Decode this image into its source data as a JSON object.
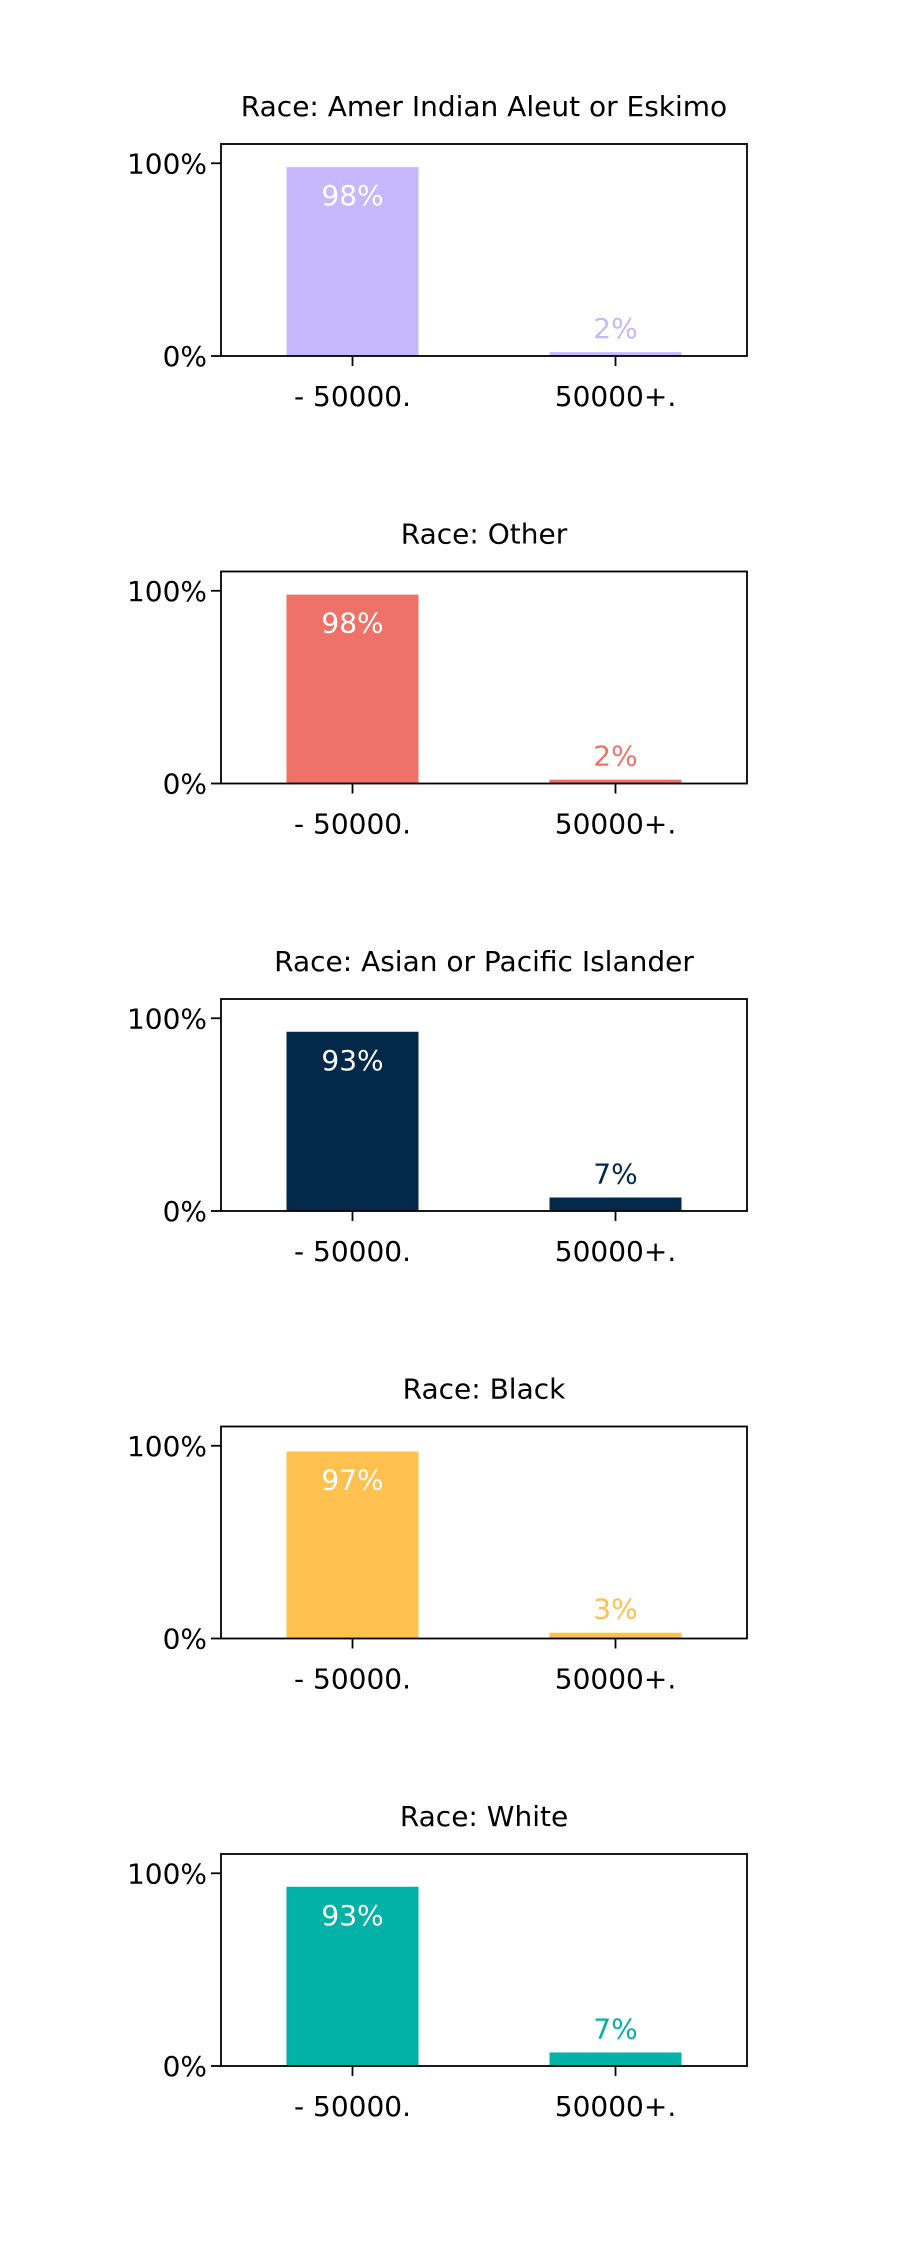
{
  "chart_data": [
    {
      "type": "bar",
      "title": "Race: Amer Indian Aleut or Eskimo",
      "categories": [
        "- 50000.",
        "50000+."
      ],
      "values": [
        98,
        2
      ],
      "value_labels": [
        "98%",
        "2%"
      ],
      "color": "#c5b8fd",
      "ylim": [
        0,
        110
      ],
      "yticks": [
        {
          "value": 0,
          "label": "0%"
        },
        {
          "value": 100,
          "label": "100%"
        }
      ]
    },
    {
      "type": "bar",
      "title": "Race: Other",
      "categories": [
        "- 50000.",
        "50000+."
      ],
      "values": [
        98,
        2
      ],
      "value_labels": [
        "98%",
        "2%"
      ],
      "color": "#ef7269",
      "ylim": [
        0,
        110
      ],
      "yticks": [
        {
          "value": 0,
          "label": "0%"
        },
        {
          "value": 100,
          "label": "100%"
        }
      ]
    },
    {
      "type": "bar",
      "title": "Race: Asian or Pacific Islander",
      "categories": [
        "- 50000.",
        "50000+."
      ],
      "values": [
        93,
        7
      ],
      "value_labels": [
        "93%",
        "7%"
      ],
      "color": "#03294a",
      "ylim": [
        0,
        110
      ],
      "yticks": [
        {
          "value": 0,
          "label": "0%"
        },
        {
          "value": 100,
          "label": "100%"
        }
      ]
    },
    {
      "type": "bar",
      "title": "Race: Black",
      "categories": [
        "- 50000.",
        "50000+."
      ],
      "values": [
        97,
        3
      ],
      "value_labels": [
        "97%",
        "3%"
      ],
      "color": "#fec150",
      "ylim": [
        0,
        110
      ],
      "yticks": [
        {
          "value": 0,
          "label": "0%"
        },
        {
          "value": 100,
          "label": "100%"
        }
      ]
    },
    {
      "type": "bar",
      "title": "Race: White",
      "categories": [
        "- 50000.",
        "50000+."
      ],
      "values": [
        93,
        7
      ],
      "value_labels": [
        "93%",
        "7%"
      ],
      "color": "#02b2a7",
      "ylim": [
        0,
        110
      ],
      "yticks": [
        {
          "value": 0,
          "label": "0%"
        },
        {
          "value": 100,
          "label": "100%"
        }
      ]
    }
  ]
}
